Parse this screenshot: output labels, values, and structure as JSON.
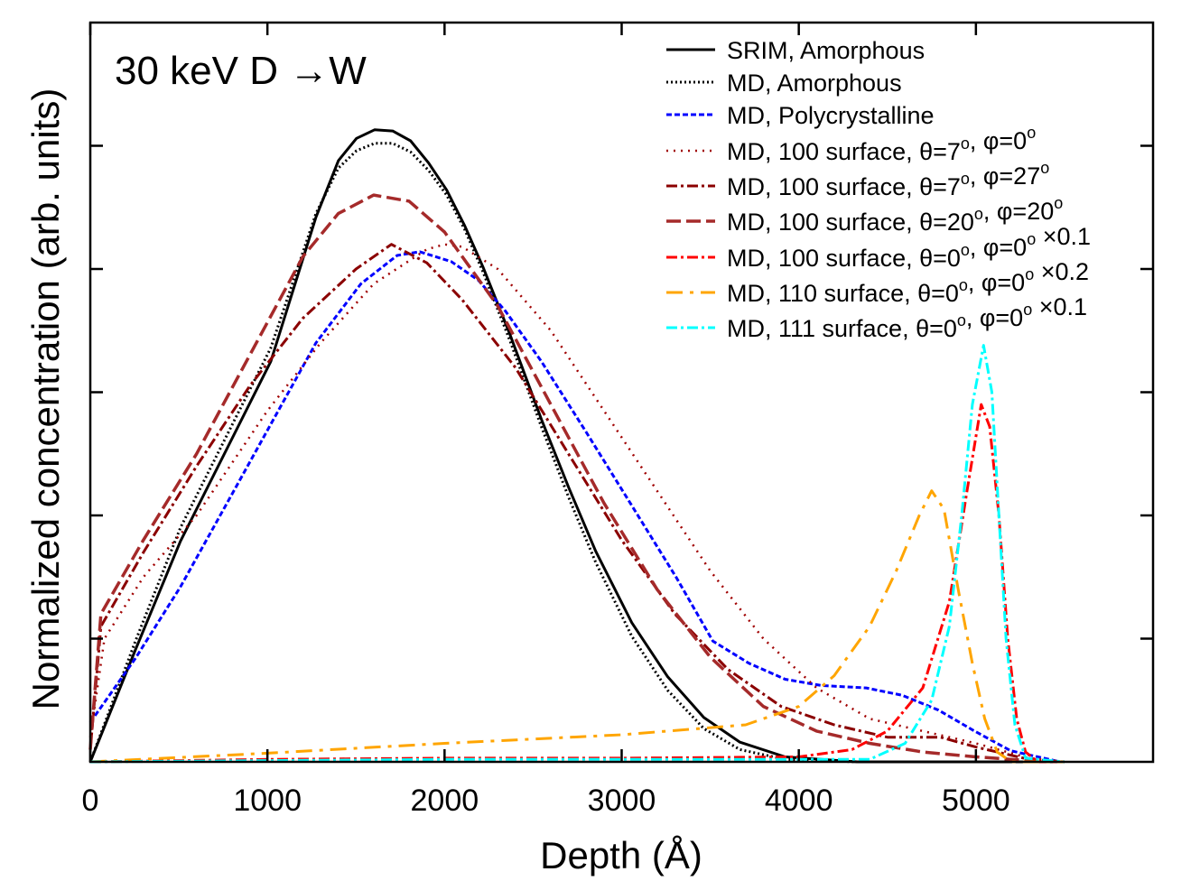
{
  "chart_data": {
    "type": "line",
    "annotation": "30 keV D →W",
    "xlabel": "Depth (Å)",
    "ylabel": "Normalized concentration (arb. units)",
    "xlim": [
      0,
      6000
    ],
    "ylim": [
      0,
      6
    ],
    "xticks": [
      "0",
      "1000",
      "2000",
      "3000",
      "4000",
      "5000"
    ],
    "yticks_labeled": false,
    "grid": false,
    "legend_position": "top-right",
    "series": [
      {
        "name": "SRIM, Amorphous",
        "color": "#000000",
        "style": "solid",
        "x": [
          0,
          255,
          509,
          1019,
          1274,
          1401,
          1503,
          1605,
          1707,
          1808,
          1910,
          2012,
          2114,
          2216,
          2369,
          2547,
          2700,
          2853,
          3057,
          3260,
          3464,
          3668,
          3923,
          4330,
          5500
        ],
        "y": [
          0,
          0.91,
          1.79,
          3.25,
          4.42,
          4.88,
          5.06,
          5.13,
          5.12,
          5.04,
          4.86,
          4.64,
          4.35,
          4.02,
          3.47,
          2.78,
          2.23,
          1.71,
          1.13,
          0.69,
          0.36,
          0.16,
          0.04,
          0,
          0
        ]
      },
      {
        "name": "MD, Amorphous",
        "color": "#000000",
        "style": "dotted",
        "x": [
          0,
          255,
          509,
          1019,
          1274,
          1401,
          1503,
          1605,
          1707,
          1808,
          1910,
          2012,
          2114,
          2216,
          2369,
          2547,
          2700,
          2853,
          3057,
          3260,
          3464,
          3668,
          3923,
          4330,
          5500
        ],
        "y": [
          0,
          0.98,
          1.9,
          3.36,
          4.45,
          4.82,
          4.96,
          5.02,
          5.02,
          4.95,
          4.8,
          4.6,
          4.32,
          3.98,
          3.42,
          2.72,
          2.15,
          1.62,
          1.02,
          0.58,
          0.27,
          0.1,
          0.02,
          0,
          0
        ]
      },
      {
        "name": "MD, Polycrystalline",
        "color": "#0000ff",
        "style": "dashed-short",
        "x": [
          0,
          255,
          509,
          764,
          1019,
          1274,
          1528,
          1732,
          1860,
          2038,
          2190,
          2343,
          2547,
          2802,
          3057,
          3311,
          3515,
          3719,
          3923,
          4126,
          4381,
          4585,
          4789,
          4992,
          5196,
          5476
        ],
        "y": [
          0.32,
          0.84,
          1.42,
          2.08,
          2.74,
          3.4,
          3.88,
          4.11,
          4.14,
          4.06,
          3.91,
          3.66,
          3.25,
          2.67,
          2.08,
          1.49,
          0.98,
          0.8,
          0.67,
          0.62,
          0.6,
          0.54,
          0.42,
          0.25,
          0.09,
          0
        ]
      },
      {
        "name": "MD, 100 surface, θ=7^o, φ=0^o",
        "color": "#a00000",
        "style": "dotted-sparse",
        "x": [
          0,
          80,
          300,
          600,
          1000,
          1300,
          1600,
          1900,
          2000,
          2100,
          2300,
          2600,
          2900,
          3200,
          3500,
          3800,
          4100,
          4400,
          4700,
          5000,
          5300,
          5500
        ],
        "y": [
          0.2,
          1.0,
          1.5,
          2.0,
          2.85,
          3.4,
          3.88,
          4.16,
          4.2,
          4.18,
          4.0,
          3.5,
          2.85,
          2.2,
          1.55,
          1.0,
          0.6,
          0.35,
          0.25,
          0.15,
          0.03,
          0
        ]
      },
      {
        "name": "MD, 100 surface, θ=7^o, φ=27^o",
        "color": "#8b0000",
        "style": "dashdot",
        "x": [
          0,
          60,
          300,
          600,
          900,
          1200,
          1500,
          1700,
          1900,
          2100,
          2400,
          2700,
          3000,
          3300,
          3600,
          3900,
          4200,
          4500,
          4800,
          5000,
          5300,
          5500
        ],
        "y": [
          0.1,
          1.1,
          1.7,
          2.4,
          3.05,
          3.6,
          4.0,
          4.2,
          4.05,
          3.75,
          3.2,
          2.5,
          1.8,
          1.2,
          0.75,
          0.45,
          0.3,
          0.2,
          0.2,
          0.12,
          0.02,
          0
        ]
      },
      {
        "name": "MD, 100 surface, θ=20^o, φ=20^o",
        "color": "#a52a2a",
        "style": "dashed-long",
        "x": [
          0,
          60,
          300,
          600,
          900,
          1200,
          1400,
          1600,
          1800,
          2000,
          2300,
          2600,
          2900,
          3200,
          3500,
          3800,
          4100,
          4400,
          4700,
          5000,
          5300,
          5500
        ],
        "y": [
          0.1,
          1.2,
          1.8,
          2.5,
          3.3,
          4.1,
          4.45,
          4.6,
          4.55,
          4.3,
          3.7,
          2.9,
          2.1,
          1.4,
          0.85,
          0.45,
          0.25,
          0.15,
          0.08,
          0.04,
          0.01,
          0
        ]
      },
      {
        "name": "MD, 100 surface, θ=0^o, φ=0^o ×0.1",
        "color": "#ff0000",
        "style": "dashdot",
        "x": [
          0,
          1000,
          2000,
          3000,
          4000,
          4300,
          4500,
          4700,
          4850,
          4950,
          5030,
          5078,
          5130,
          5180,
          5230,
          5280,
          5350,
          5500
        ],
        "y": [
          0,
          0.02,
          0.03,
          0.03,
          0.04,
          0.1,
          0.25,
          0.6,
          1.3,
          2.2,
          2.9,
          2.72,
          2.0,
          1.0,
          0.35,
          0.08,
          0,
          0
        ]
      },
      {
        "name": "MD, 110 surface, θ=0^o, φ=0^o ×0.2",
        "color": "#ffa500",
        "style": "dashdot-long",
        "x": [
          0,
          1000,
          2000,
          3000,
          3700,
          4000,
          4200,
          4400,
          4550,
          4680,
          4750,
          4820,
          4900,
          4980,
          5050,
          5120,
          5200,
          5500
        ],
        "y": [
          0,
          0.07,
          0.15,
          0.22,
          0.3,
          0.45,
          0.7,
          1.1,
          1.55,
          2.0,
          2.2,
          2.05,
          1.4,
          0.8,
          0.35,
          0.08,
          0,
          0
        ]
      },
      {
        "name": "MD, 111 surface, θ=0^o, φ=0^o ×0.1",
        "color": "#00ffff",
        "style": "dashdot",
        "x": [
          0,
          1000,
          2000,
          3000,
          4000,
          4400,
          4600,
          4750,
          4850,
          4920,
          4980,
          5043,
          5090,
          5130,
          5170,
          5220,
          5280,
          5500
        ],
        "y": [
          0,
          0.01,
          0.02,
          0.02,
          0.02,
          0.02,
          0.15,
          0.5,
          1.1,
          2.0,
          2.9,
          3.38,
          3.0,
          2.0,
          1.0,
          0.3,
          0.03,
          0
        ]
      }
    ]
  }
}
